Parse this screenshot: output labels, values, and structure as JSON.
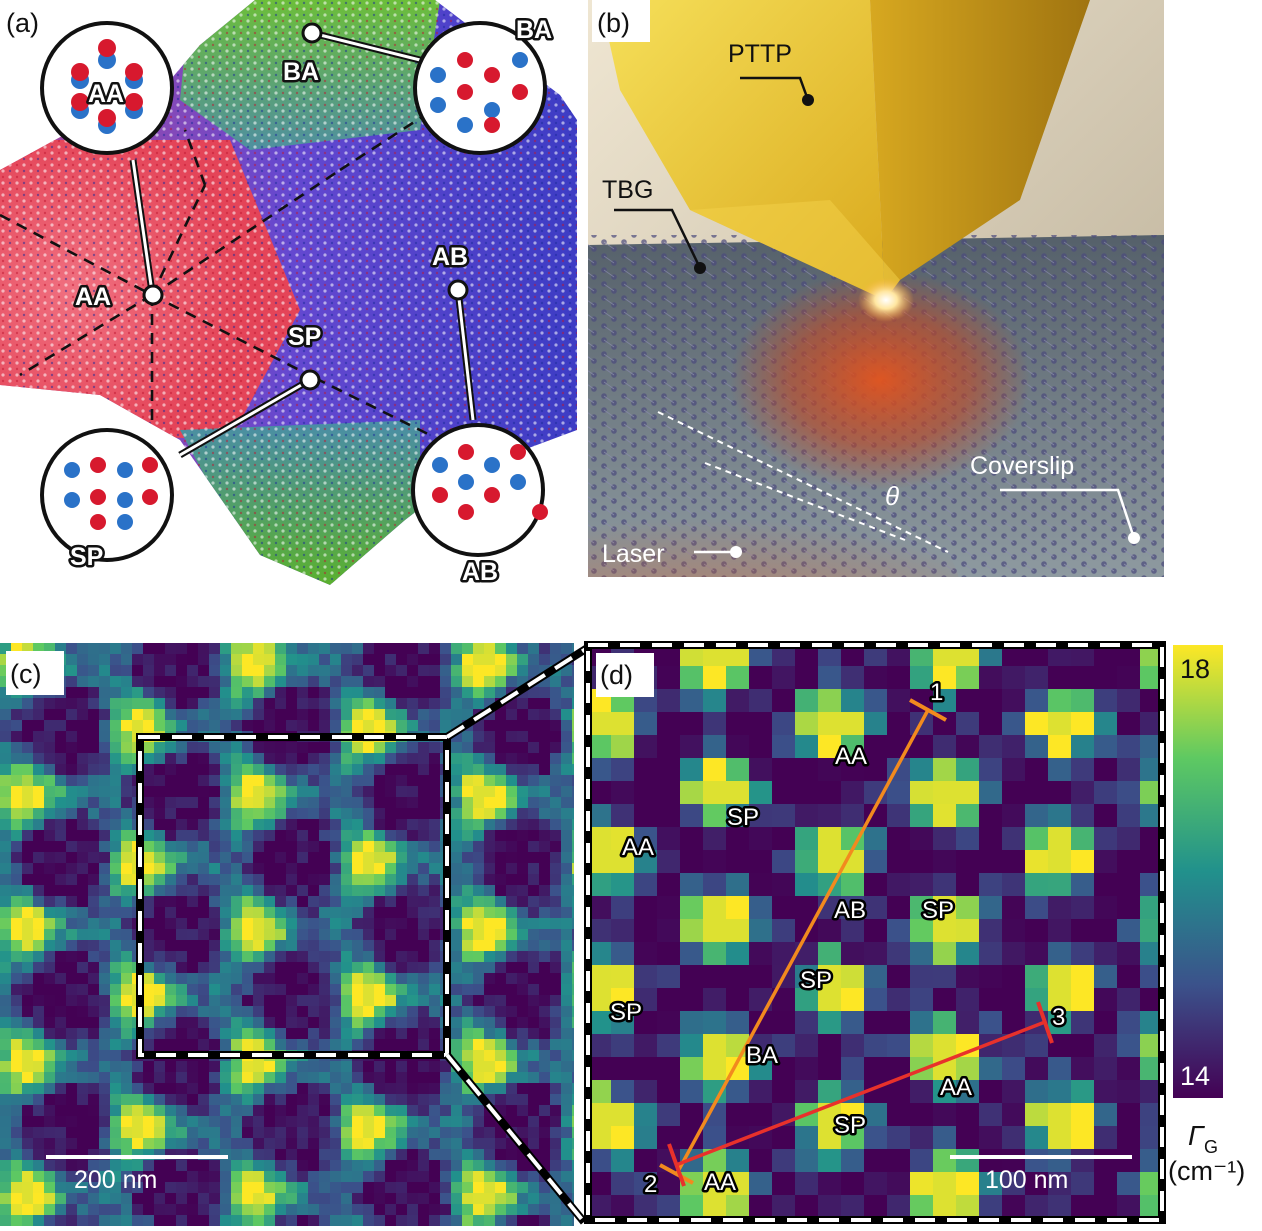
{
  "figure": {
    "panels": [
      {
        "tag": "(a)"
      },
      {
        "tag": "(b)"
      },
      {
        "tag": "(c)"
      },
      {
        "tag": "(d)"
      }
    ]
  },
  "panel_a": {
    "zoom_circles": {
      "aa": "AA",
      "ba": "BA",
      "sp": "SP",
      "ab": "AB"
    },
    "markers": {
      "ba": "BA",
      "aa": "AA",
      "ab": "AB",
      "sp": "SP"
    },
    "colors": {
      "aa_region": "#e84858",
      "ab_region": "#5a4ed6",
      "ba_region": "#6cba3c",
      "atom_top": "#d7192e",
      "atom_bottom": "#2a72c8"
    }
  },
  "panel_b": {
    "labels": {
      "tip": "PTTP",
      "sample": "TBG",
      "angle": "θ",
      "substrate": "Coverslip",
      "laser": "Laser"
    },
    "colors": {
      "tip": "#e8c22c",
      "background": "#d8c9a8",
      "glass": "#7f8c92"
    }
  },
  "panel_c": {
    "scale_bar": "200 nm"
  },
  "panel_d": {
    "site_labels": [
      {
        "text": "AA"
      },
      {
        "text": "SP"
      },
      {
        "text": "AA"
      },
      {
        "text": "AB"
      },
      {
        "text": "SP"
      },
      {
        "text": "SP"
      },
      {
        "text": "SP"
      },
      {
        "text": "BA"
      },
      {
        "text": "AA"
      },
      {
        "text": "SP"
      },
      {
        "text": "AA"
      }
    ],
    "line_points": {
      "p1": "1",
      "p2": "2",
      "p3": "3"
    },
    "scale_bar": "100 nm",
    "line_colors": {
      "line_12": "#f28a1e",
      "line_23": "#e8312b"
    }
  },
  "colorbar": {
    "max": "18",
    "min": "14",
    "symbol": "Γ",
    "subscript": "G",
    "unit": "(cm⁻¹)",
    "colormap": [
      "#440154",
      "#3b528b",
      "#21918c",
      "#5ec962",
      "#fde725"
    ]
  }
}
